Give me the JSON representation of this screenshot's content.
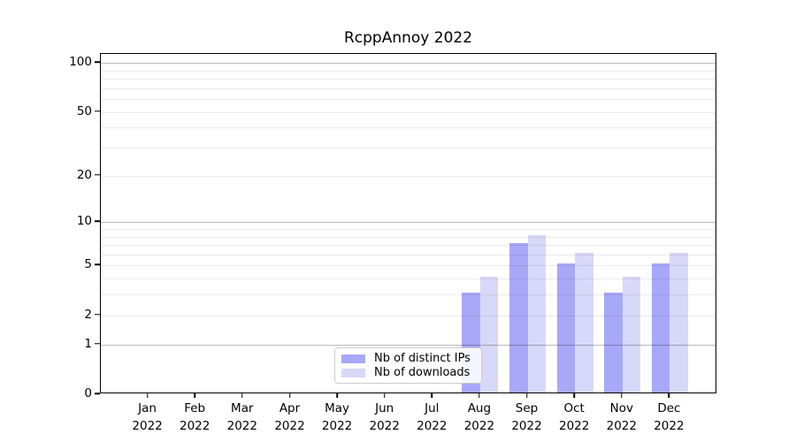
{
  "chart_data": {
    "type": "bar",
    "title": "RcppAnnoy 2022",
    "categories": [
      "Jan 2022",
      "Feb 2022",
      "Mar 2022",
      "Apr 2022",
      "May 2022",
      "Jun 2022",
      "Jul 2022",
      "Aug 2022",
      "Sep 2022",
      "Oct 2022",
      "Nov 2022",
      "Dec 2022"
    ],
    "series": [
      {
        "name": "Nb of distinct IPs",
        "color": "#a8a8f8",
        "values": [
          0,
          0,
          0,
          0,
          0,
          0,
          0,
          3,
          7,
          5,
          3,
          5
        ]
      },
      {
        "name": "Nb of downloads",
        "color": "#d8d8f8",
        "values": [
          0,
          0,
          0,
          0,
          0,
          0,
          0,
          4,
          8,
          6,
          4,
          6
        ]
      }
    ],
    "xlabel": "",
    "ylabel": "",
    "y_scale": "log1p",
    "y_tick_labels": [
      0,
      1,
      2,
      5,
      10,
      20,
      50,
      100
    ],
    "y_minor_gridlines": [
      2,
      3,
      4,
      5,
      6,
      7,
      8,
      9,
      20,
      30,
      40,
      50,
      60,
      70,
      80,
      90
    ],
    "y_major_gridlines": [
      1,
      10,
      100
    ],
    "ylim": [
      0,
      113
    ],
    "grid": true,
    "legend_position": "lower center"
  }
}
